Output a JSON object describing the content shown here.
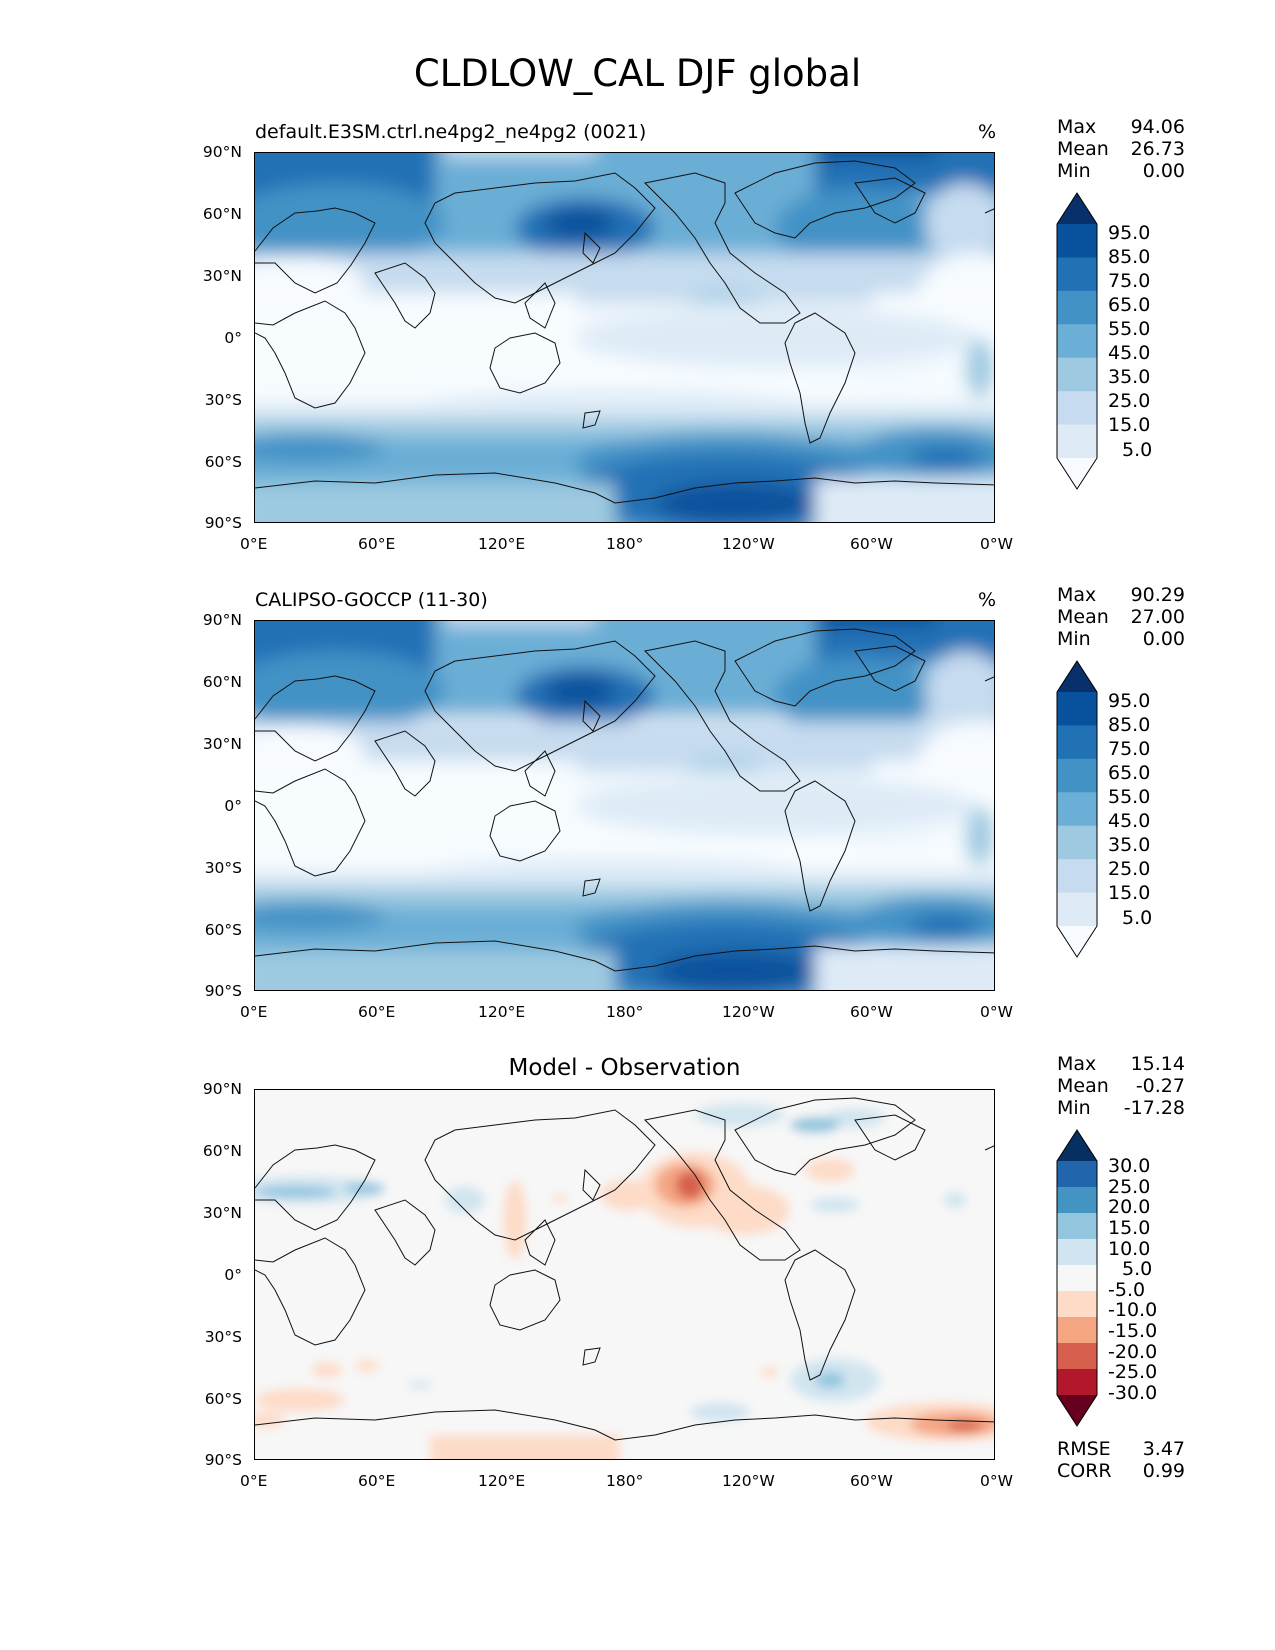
{
  "title": "CLDLOW_CAL DJF global",
  "x_ticks": [
    "0°E",
    "60°E",
    "120°E",
    "180°",
    "120°W",
    "60°W",
    "0°W"
  ],
  "y_ticks": [
    "90°N",
    "60°N",
    "30°N",
    "0°",
    "30°S",
    "60°S",
    "90°S"
  ],
  "colors": {
    "blues": [
      "#f7fbff",
      "#deebf7",
      "#c6dbef",
      "#9ecae1",
      "#6baed6",
      "#4292c6",
      "#2171b5",
      "#08519c",
      "#08306b"
    ],
    "diff": [
      "#67001f",
      "#b2182b",
      "#d6604d",
      "#f4a582",
      "#fddbc7",
      "#f7f7f7",
      "#d1e5f0",
      "#92c5de",
      "#4393c3",
      "#2166ac",
      "#053061"
    ]
  },
  "panels": [
    {
      "title": "default.E3SM.ctrl.ne4pg2_ne4pg2 (0021)",
      "units": "%",
      "stats": [
        {
          "label": "Max",
          "value": "94.06"
        },
        {
          "label": "Mean",
          "value": "26.73"
        },
        {
          "label": "Min",
          "value": "0.00"
        }
      ],
      "colorbar_labels": [
        "95.0",
        "85.0",
        "75.0",
        "65.0",
        "55.0",
        "45.0",
        "35.0",
        "25.0",
        "15.0",
        "5.0"
      ]
    },
    {
      "title": "CALIPSO-GOCCP (11-30)",
      "units": "%",
      "stats": [
        {
          "label": "Max",
          "value": "90.29"
        },
        {
          "label": "Mean",
          "value": "27.00"
        },
        {
          "label": "Min",
          "value": "0.00"
        }
      ],
      "colorbar_labels": [
        "95.0",
        "85.0",
        "75.0",
        "65.0",
        "55.0",
        "45.0",
        "35.0",
        "25.0",
        "15.0",
        "5.0"
      ]
    },
    {
      "title": "Model - Observation",
      "stats": [
        {
          "label": "Max",
          "value": "15.14"
        },
        {
          "label": "Mean",
          "value": "-0.27"
        },
        {
          "label": "Min",
          "value": "-17.28"
        }
      ],
      "colorbar_labels": [
        "30.0",
        "25.0",
        "20.0",
        "15.0",
        "10.0",
        "5.0",
        "-5.0",
        "-10.0",
        "-15.0",
        "-20.0",
        "-25.0",
        "-30.0"
      ],
      "metrics": [
        {
          "label": "RMSE",
          "value": "3.47"
        },
        {
          "label": "CORR",
          "value": "0.99"
        }
      ]
    }
  ]
}
